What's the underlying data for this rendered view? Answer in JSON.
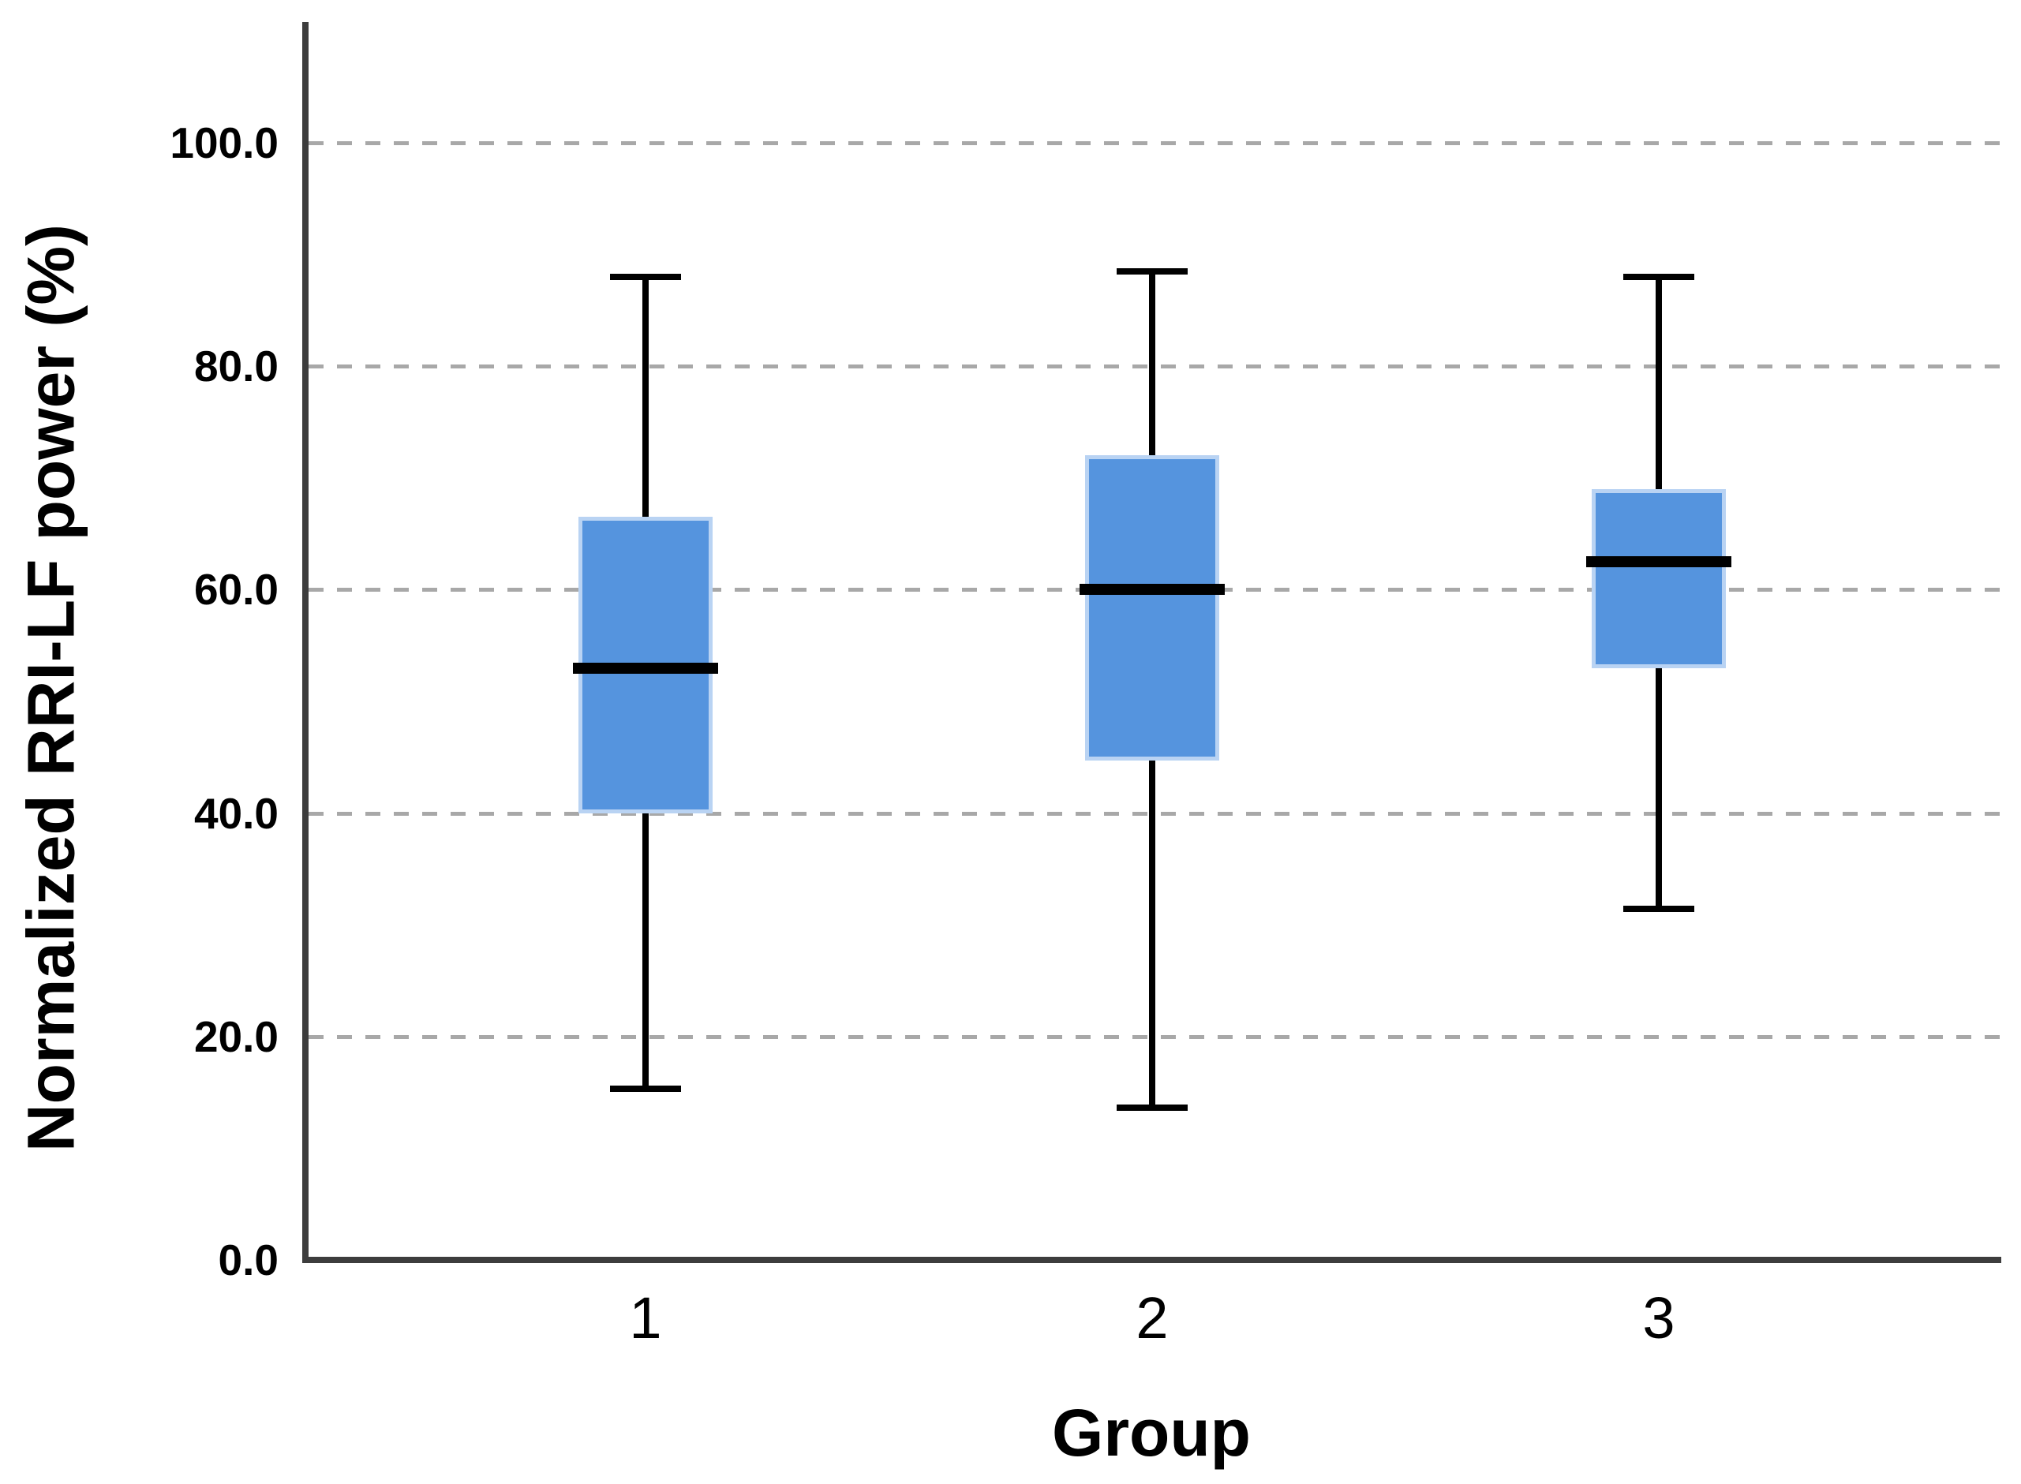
{
  "chart_data": {
    "type": "box",
    "title": "",
    "xlabel": "Group",
    "ylabel": "Normalized RRI-LF power (%)",
    "categories": [
      "1",
      "2",
      "3"
    ],
    "yticks": [
      {
        "value": 0,
        "label": "0.0"
      },
      {
        "value": 20,
        "label": "20.0"
      },
      {
        "value": 40,
        "label": "40.0"
      },
      {
        "value": 60,
        "label": "60.0"
      },
      {
        "value": 80,
        "label": "80.0"
      },
      {
        "value": 100,
        "label": "100.0"
      }
    ],
    "ylim": [
      0,
      110
    ],
    "grid": "horizontal dashed gridlines at each y tick above 0, legend none",
    "series": [
      {
        "category": "1",
        "whisker_low": 15.3,
        "q1": 40.0,
        "median": 53.0,
        "q3": 66.5,
        "whisker_high": 88.0
      },
      {
        "category": "2",
        "whisker_low": 13.6,
        "q1": 44.7,
        "median": 60.0,
        "q3": 72.0,
        "whisker_high": 88.5
      },
      {
        "category": "3",
        "whisker_low": 31.4,
        "q1": 53.0,
        "median": 62.5,
        "q3": 69.0,
        "whisker_high": 88.0
      }
    ],
    "colors": {
      "box_fill": "#5594de",
      "box_border": "#b9d3f3",
      "median": "#000000",
      "whisker": "#000000",
      "gridline": "#a8a8a8",
      "axis": "#3d3d3d",
      "text": "#000000"
    }
  }
}
